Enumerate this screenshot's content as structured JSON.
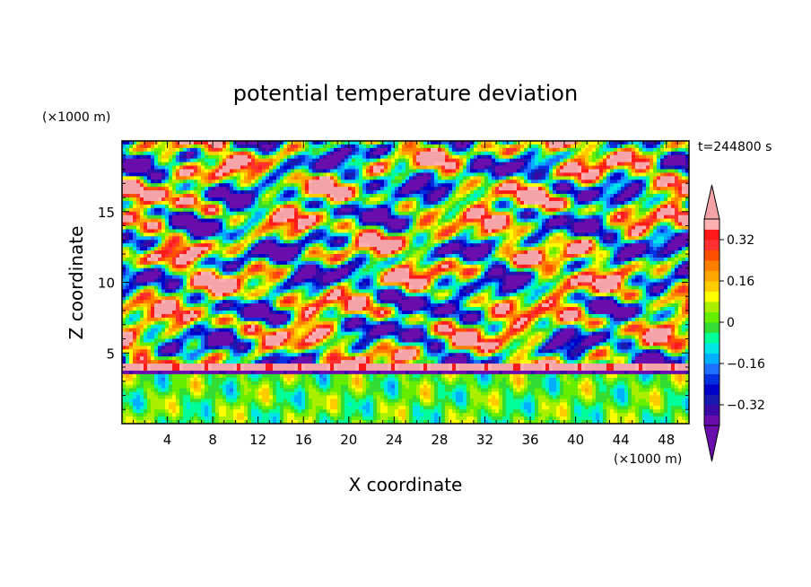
{
  "chart_data": {
    "type": "heatmap",
    "title": "potential temperature deviation",
    "xlabel": "X coordinate",
    "ylabel": "Z coordinate",
    "x_unit_label": "(×1000 m)",
    "y_unit_label": "(×1000 m)",
    "time_label": "t=244800 s",
    "xlim": [
      0,
      50
    ],
    "ylim": [
      0,
      20
    ],
    "x_ticks": [
      4,
      8,
      12,
      16,
      20,
      24,
      28,
      32,
      36,
      40,
      44,
      48
    ],
    "x_tick_labels": [
      "4",
      "8",
      "12",
      "16",
      "20",
      "24",
      "28",
      "32",
      "36",
      "40",
      "44",
      "48"
    ],
    "y_ticks": [
      5,
      10,
      15
    ],
    "y_tick_labels": [
      "5",
      "10",
      "15"
    ],
    "colorbar": {
      "levels": [
        -0.4,
        -0.36,
        -0.32,
        -0.28,
        -0.24,
        -0.2,
        -0.16,
        -0.12,
        -0.08,
        -0.04,
        0,
        0.04,
        0.08,
        0.12,
        0.16,
        0.2,
        0.24,
        0.28,
        0.32,
        0.36,
        0.4
      ],
      "colors": [
        "#6a0dad",
        "#3a0aa6",
        "#1a1ab0",
        "#0000c8",
        "#0030e0",
        "#1e70ff",
        "#00b0ff",
        "#00e5e5",
        "#00ff99",
        "#33dd33",
        "#66ee00",
        "#aaee00",
        "#ffff00",
        "#ffcc00",
        "#ffa500",
        "#ff7f00",
        "#ff5000",
        "#ff3030",
        "#ff1a1a",
        "#ffb0b0"
      ],
      "tick_values": [
        0.32,
        0.16,
        0,
        -0.16,
        -0.32
      ],
      "tick_labels": [
        "0.32",
        "0.16",
        "0",
        "−0.16",
        "−0.32"
      ],
      "extend": "both"
    },
    "field_description": "Layered wave-like structure: near-uniform green boundary layer below ~3.5 km with weak cells, a strong pink/purple banded inversion near 4 km, and alternating pink (+0.4) and purple (−0.4) blobs above up to 20 km."
  },
  "colors": {
    "background": "#ffffff",
    "frame": "#000000",
    "over": "#f4a3a8",
    "under": "#6a0dad"
  }
}
